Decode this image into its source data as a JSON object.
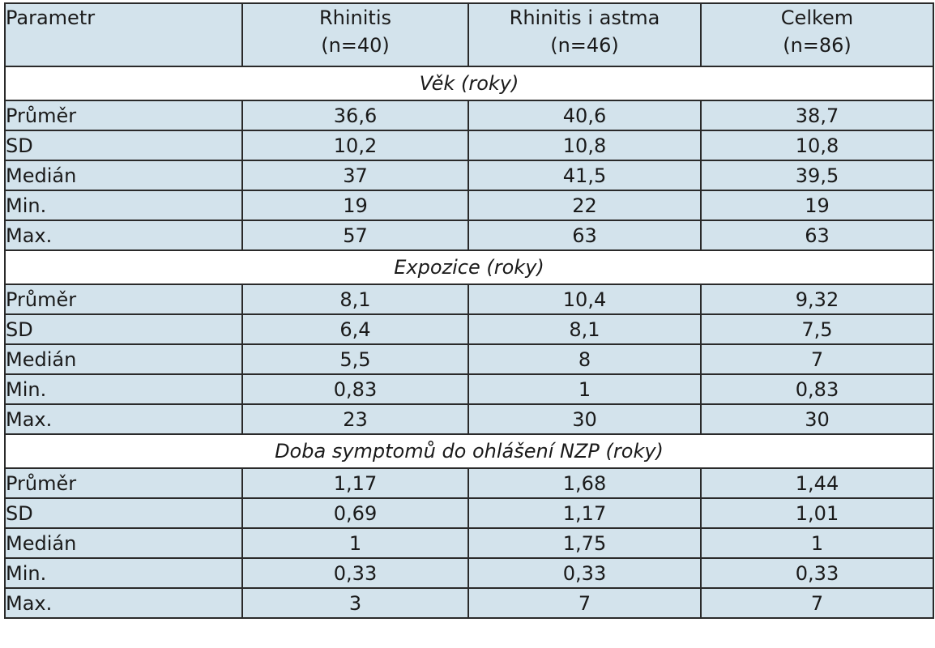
{
  "header": {
    "parameter": "Parametr",
    "groups": [
      {
        "name": "Rhinitis",
        "n": "(n=40)"
      },
      {
        "name": "Rhinitis i astma",
        "n": "(n=46)"
      },
      {
        "name": "Celkem",
        "n": "(n=86)"
      }
    ]
  },
  "sections": [
    {
      "title": "Věk (roky)",
      "rows": [
        {
          "label": "Průměr",
          "values": [
            "36,6",
            "40,6",
            "38,7"
          ]
        },
        {
          "label": "SD",
          "values": [
            "10,2",
            "10,8",
            "10,8"
          ]
        },
        {
          "label": "Medián",
          "values": [
            "37",
            "41,5",
            "39,5"
          ]
        },
        {
          "label": "Min.",
          "values": [
            "19",
            "22",
            "19"
          ]
        },
        {
          "label": "Max.",
          "values": [
            "57",
            "63",
            "63"
          ]
        }
      ]
    },
    {
      "title": "Expozice (roky)",
      "rows": [
        {
          "label": "Průměr",
          "values": [
            "8,1",
            "10,4",
            "9,32"
          ]
        },
        {
          "label": "SD",
          "values": [
            "6,4",
            "8,1",
            "7,5"
          ]
        },
        {
          "label": "Medián",
          "values": [
            "5,5",
            "8",
            "7"
          ]
        },
        {
          "label": "Min.",
          "values": [
            "0,83",
            "1",
            "0,83"
          ]
        },
        {
          "label": "Max.",
          "values": [
            "23",
            "30",
            "30"
          ]
        }
      ]
    },
    {
      "title": "Doba symptomů do ohlášení NZP (roky)",
      "rows": [
        {
          "label": "Průměr",
          "values": [
            "1,17",
            "1,68",
            "1,44"
          ]
        },
        {
          "label": "SD",
          "values": [
            "0,69",
            "1,17",
            "1,01"
          ]
        },
        {
          "label": "Medián",
          "values": [
            "1",
            "1,75",
            "1"
          ]
        },
        {
          "label": "Min.",
          "values": [
            "0,33",
            "0,33",
            "0,33"
          ]
        },
        {
          "label": "Max.",
          "values": [
            "3",
            "7",
            "7"
          ]
        }
      ]
    }
  ],
  "colors": {
    "row_fill": "#d3e3ec",
    "section_fill": "#ffffff",
    "border": "#2a2a2a"
  }
}
